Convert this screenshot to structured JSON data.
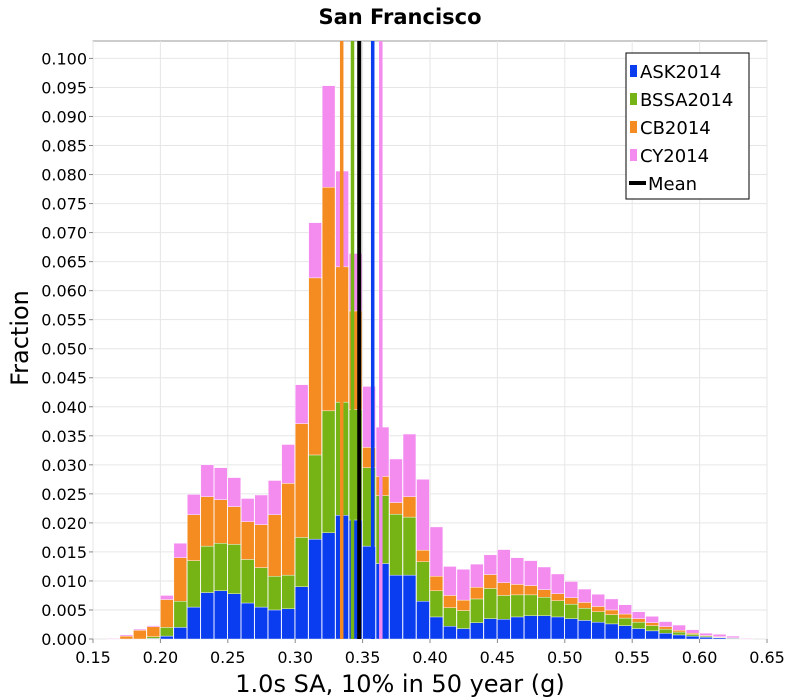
{
  "chart_data": {
    "type": "bar",
    "stacked": true,
    "title": "San Francisco",
    "xlabel": "1.0s SA, 10% in 50 year (g)",
    "ylabel": "Fraction",
    "xlim": [
      0.15,
      0.65
    ],
    "ylim": [
      0.0,
      0.103
    ],
    "grid": true,
    "legend_position": "top-right",
    "x_ticks": [
      "0.15",
      "0.20",
      "0.25",
      "0.30",
      "0.35",
      "0.40",
      "0.45",
      "0.50",
      "0.55",
      "0.60",
      "0.65"
    ],
    "y_ticks": [
      "0.000",
      "0.005",
      "0.010",
      "0.015",
      "0.020",
      "0.025",
      "0.030",
      "0.035",
      "0.040",
      "0.045",
      "0.050",
      "0.055",
      "0.060",
      "0.065",
      "0.070",
      "0.075",
      "0.080",
      "0.085",
      "0.090",
      "0.095",
      "0.100"
    ],
    "bin_width": 0.01,
    "bin_centers": [
      0.155,
      0.165,
      0.175,
      0.185,
      0.195,
      0.205,
      0.215,
      0.225,
      0.235,
      0.245,
      0.255,
      0.265,
      0.275,
      0.285,
      0.295,
      0.305,
      0.315,
      0.325,
      0.335,
      0.345,
      0.355,
      0.365,
      0.375,
      0.385,
      0.395,
      0.405,
      0.415,
      0.425,
      0.435,
      0.445,
      0.455,
      0.465,
      0.475,
      0.485,
      0.495,
      0.505,
      0.515,
      0.525,
      0.535,
      0.545,
      0.555,
      0.565,
      0.575,
      0.585,
      0.595,
      0.605,
      0.615,
      0.625,
      0.635,
      0.645
    ],
    "series": [
      {
        "name": "ASK2014",
        "color": "#0a3cf0",
        "values": [
          0.0,
          0.0,
          0.0,
          0.0,
          0.0001,
          0.0005,
          0.002,
          0.0055,
          0.008,
          0.0083,
          0.0078,
          0.0062,
          0.0055,
          0.005,
          0.0052,
          0.009,
          0.0172,
          0.0183,
          0.0213,
          0.0205,
          0.016,
          0.013,
          0.011,
          0.011,
          0.0065,
          0.0038,
          0.0022,
          0.0018,
          0.0028,
          0.0035,
          0.0034,
          0.0038,
          0.004,
          0.004,
          0.0038,
          0.0035,
          0.0032,
          0.0029,
          0.0026,
          0.0023,
          0.0018,
          0.0014,
          0.001,
          0.0007,
          0.0005,
          0.0003,
          0.0002,
          0.0001,
          0.0,
          0.0
        ]
      },
      {
        "name": "BSSA2014",
        "color": "#76b416",
        "values": [
          0.0,
          0.0,
          0.0,
          0.0,
          0.0003,
          0.0015,
          0.0045,
          0.008,
          0.008,
          0.0082,
          0.0085,
          0.0075,
          0.0068,
          0.0058,
          0.0058,
          0.0085,
          0.0145,
          0.021,
          0.0195,
          0.019,
          0.0135,
          0.0117,
          0.0105,
          0.01,
          0.0068,
          0.0045,
          0.0032,
          0.0031,
          0.0041,
          0.0052,
          0.0041,
          0.0038,
          0.0036,
          0.0032,
          0.0028,
          0.0025,
          0.0021,
          0.0018,
          0.0016,
          0.0013,
          0.0011,
          0.0009,
          0.0007,
          0.0005,
          0.0003,
          0.0002,
          0.0001,
          0.0001,
          0.0,
          0.0
        ]
      },
      {
        "name": "CB2014",
        "color": "#f48c22",
        "values": [
          0.0,
          0.0,
          0.0005,
          0.0015,
          0.0017,
          0.0048,
          0.0075,
          0.0079,
          0.0085,
          0.0075,
          0.0065,
          0.0065,
          0.0074,
          0.0106,
          0.0158,
          0.0196,
          0.0305,
          0.0385,
          0.0233,
          0.017,
          0.0035,
          0.0033,
          0.002,
          0.0035,
          0.002,
          0.0025,
          0.0021,
          0.0018,
          0.002,
          0.0024,
          0.0022,
          0.0018,
          0.0016,
          0.0013,
          0.0012,
          0.0011,
          0.001,
          0.0009,
          0.0008,
          0.0007,
          0.0006,
          0.0005,
          0.0004,
          0.0003,
          0.0002,
          0.0001,
          0.0001,
          0.0,
          0.0,
          0.0
        ]
      },
      {
        "name": "CY2014",
        "color": "#f48cf0",
        "values": [
          0.0,
          0.0001,
          0.0002,
          0.0002,
          0.0002,
          0.0007,
          0.0025,
          0.0035,
          0.0055,
          0.0055,
          0.005,
          0.004,
          0.0051,
          0.0059,
          0.0067,
          0.0067,
          0.0095,
          0.0175,
          0.0165,
          0.0099,
          0.0105,
          0.0085,
          0.0075,
          0.0108,
          0.0122,
          0.0085,
          0.005,
          0.0053,
          0.004,
          0.0034,
          0.0057,
          0.0046,
          0.0043,
          0.0039,
          0.0034,
          0.0028,
          0.0023,
          0.0021,
          0.0019,
          0.0016,
          0.0012,
          0.0011,
          0.0009,
          0.0009,
          0.0006,
          0.0004,
          0.0004,
          0.0003,
          0.0001,
          0.0
        ]
      }
    ],
    "vertical_lines": [
      {
        "name": "ASK2014",
        "color": "#0a3cf0",
        "x": 0.3575
      },
      {
        "name": "BSSA2014",
        "color": "#76b416",
        "x": 0.3425
      },
      {
        "name": "CB2014",
        "color": "#f48c22",
        "x": 0.3345
      },
      {
        "name": "CY2014",
        "color": "#f48cf0",
        "x": 0.3635
      },
      {
        "name": "Mean",
        "color": "#000000",
        "x": 0.3475
      }
    ],
    "legend": [
      {
        "label": "ASK2014",
        "color": "#0a3cf0"
      },
      {
        "label": "BSSA2014",
        "color": "#76b416"
      },
      {
        "label": "CB2014",
        "color": "#f48c22"
      },
      {
        "label": "CY2014",
        "color": "#f48cf0"
      },
      {
        "label": "Mean",
        "color": "#000000",
        "style": "line"
      }
    ]
  }
}
